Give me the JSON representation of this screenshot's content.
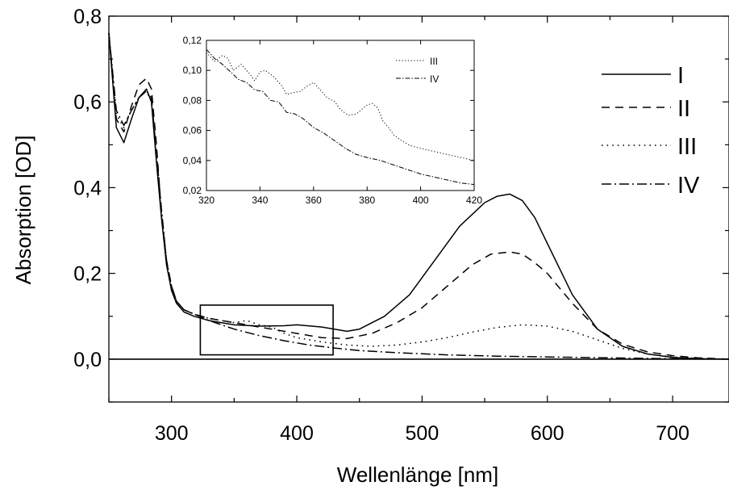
{
  "chart_data": [
    {
      "type": "line",
      "title": "",
      "xlabel": "Wellenlänge [nm]",
      "ylabel": "Absorption [OD]",
      "xlim": [
        250,
        745
      ],
      "ylim": [
        -0.1,
        0.8
      ],
      "xticks": [
        300,
        400,
        500,
        600,
        700
      ],
      "xtick_labels": [
        "300",
        "400",
        "500",
        "600",
        "700"
      ],
      "yticks": [
        0.0,
        0.2,
        0.4,
        0.6,
        0.8
      ],
      "ytick_labels": [
        "0,0",
        "0,2",
        "0,4",
        "0,6",
        "0,8"
      ],
      "grid": false,
      "legend_position": "top-right",
      "zero_line": 0.0,
      "highlight_box": {
        "x": [
          323,
          429
        ],
        "y": [
          0.01,
          0.126
        ]
      },
      "series": [
        {
          "name": "I",
          "style": "solid",
          "x": [
            250,
            256,
            262,
            268,
            274,
            280,
            284,
            288,
            292,
            296,
            300,
            304,
            310,
            318,
            330,
            350,
            370,
            390,
            400,
            420,
            440,
            450,
            470,
            490,
            510,
            530,
            550,
            560,
            570,
            580,
            590,
            600,
            620,
            640,
            660,
            680,
            700,
            720,
            745
          ],
          "y": [
            0.76,
            0.54,
            0.505,
            0.56,
            0.61,
            0.63,
            0.6,
            0.46,
            0.33,
            0.22,
            0.16,
            0.13,
            0.11,
            0.1,
            0.09,
            0.08,
            0.077,
            0.078,
            0.08,
            0.075,
            0.065,
            0.07,
            0.1,
            0.15,
            0.23,
            0.31,
            0.365,
            0.38,
            0.385,
            0.37,
            0.33,
            0.27,
            0.15,
            0.07,
            0.03,
            0.012,
            0.004,
            0.001,
            0.0
          ]
        },
        {
          "name": "II",
          "style": "dashed",
          "x": [
            250,
            256,
            262,
            268,
            274,
            280,
            284,
            288,
            292,
            296,
            300,
            304,
            310,
            318,
            330,
            350,
            370,
            400,
            420,
            440,
            460,
            480,
            500,
            520,
            540,
            555,
            570,
            580,
            590,
            600,
            620,
            640,
            660,
            680,
            700,
            720,
            745
          ],
          "y": [
            0.76,
            0.56,
            0.53,
            0.59,
            0.64,
            0.655,
            0.63,
            0.5,
            0.34,
            0.23,
            0.17,
            0.135,
            0.115,
            0.105,
            0.095,
            0.085,
            0.075,
            0.06,
            0.05,
            0.048,
            0.06,
            0.085,
            0.12,
            0.17,
            0.22,
            0.245,
            0.25,
            0.245,
            0.225,
            0.2,
            0.13,
            0.07,
            0.035,
            0.017,
            0.008,
            0.003,
            0.0
          ]
        },
        {
          "name": "III",
          "style": "dotted",
          "x": [
            250,
            256,
            262,
            268,
            274,
            280,
            284,
            288,
            292,
            296,
            300,
            304,
            310,
            318,
            330,
            340,
            350,
            360,
            370,
            380,
            390,
            400,
            420,
            440,
            460,
            480,
            500,
            520,
            540,
            560,
            580,
            600,
            620,
            640,
            660,
            680,
            700,
            720,
            745
          ],
          "y": [
            0.76,
            0.57,
            0.54,
            0.58,
            0.61,
            0.625,
            0.6,
            0.47,
            0.34,
            0.23,
            0.17,
            0.135,
            0.115,
            0.105,
            0.095,
            0.09,
            0.085,
            0.09,
            0.08,
            0.075,
            0.06,
            0.05,
            0.04,
            0.033,
            0.03,
            0.033,
            0.04,
            0.05,
            0.063,
            0.074,
            0.08,
            0.077,
            0.065,
            0.045,
            0.025,
            0.012,
            0.005,
            0.002,
            0.0
          ]
        },
        {
          "name": "IV",
          "style": "dashdot",
          "x": [
            250,
            256,
            262,
            268,
            274,
            280,
            284,
            288,
            292,
            296,
            300,
            304,
            310,
            318,
            330,
            350,
            370,
            390,
            410,
            430,
            450,
            480,
            520,
            560,
            600,
            650,
            700,
            745
          ],
          "y": [
            0.76,
            0.58,
            0.545,
            0.58,
            0.61,
            0.625,
            0.61,
            0.48,
            0.35,
            0.23,
            0.17,
            0.135,
            0.115,
            0.105,
            0.09,
            0.07,
            0.055,
            0.043,
            0.033,
            0.026,
            0.02,
            0.015,
            0.01,
            0.007,
            0.005,
            0.003,
            0.001,
            0.0
          ]
        }
      ]
    },
    {
      "type": "line",
      "title": "",
      "xlabel": "",
      "ylabel": "",
      "xlim": [
        320,
        420
      ],
      "ylim": [
        0.02,
        0.12
      ],
      "xticks": [
        320,
        340,
        360,
        380,
        400,
        420
      ],
      "xtick_labels": [
        "320",
        "340",
        "360",
        "380",
        "400",
        "420"
      ],
      "yticks": [
        0.02,
        0.04,
        0.06,
        0.08,
        0.1,
        0.12
      ],
      "ytick_labels": [
        "0,02",
        "0,04",
        "0,06",
        "0,08",
        "0,10",
        "0,12"
      ],
      "grid": false,
      "legend_position": "top-right",
      "series": [
        {
          "name": "III",
          "style": "dotted",
          "x": [
            320,
            323,
            326,
            328,
            330,
            333,
            336,
            338,
            340,
            342,
            345,
            348,
            350,
            352,
            355,
            358,
            360,
            362,
            365,
            368,
            370,
            373,
            376,
            378,
            380,
            382,
            384,
            386,
            388,
            390,
            393,
            396,
            400,
            405,
            410,
            415,
            420
          ],
          "y": [
            0.112,
            0.106,
            0.11,
            0.108,
            0.1,
            0.104,
            0.098,
            0.093,
            0.099,
            0.1,
            0.096,
            0.09,
            0.084,
            0.085,
            0.086,
            0.09,
            0.092,
            0.088,
            0.082,
            0.079,
            0.074,
            0.07,
            0.071,
            0.074,
            0.077,
            0.078,
            0.075,
            0.066,
            0.062,
            0.057,
            0.053,
            0.05,
            0.048,
            0.046,
            0.044,
            0.042,
            0.04
          ]
        },
        {
          "name": "IV",
          "style": "dashdot",
          "x": [
            320,
            323,
            326,
            329,
            332,
            335,
            338,
            341,
            344,
            347,
            350,
            353,
            356,
            360,
            364,
            368,
            372,
            376,
            380,
            385,
            390,
            395,
            400,
            405,
            410,
            415,
            420
          ],
          "y": [
            0.114,
            0.108,
            0.104,
            0.099,
            0.094,
            0.092,
            0.087,
            0.086,
            0.08,
            0.079,
            0.072,
            0.071,
            0.068,
            0.062,
            0.058,
            0.053,
            0.048,
            0.044,
            0.042,
            0.04,
            0.037,
            0.034,
            0.031,
            0.029,
            0.027,
            0.025,
            0.024
          ]
        }
      ]
    }
  ]
}
